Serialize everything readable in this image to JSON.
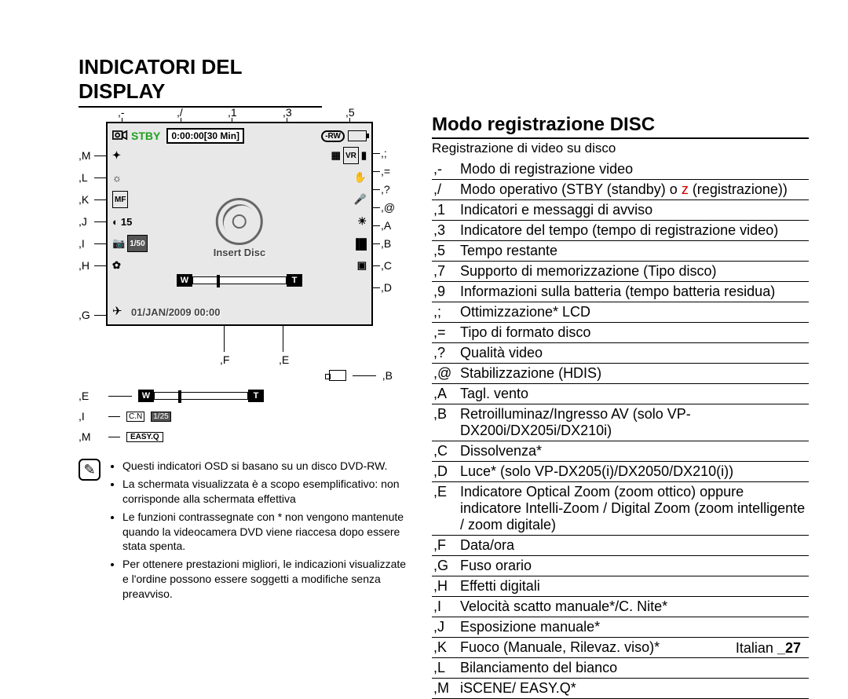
{
  "title": "INDICATORI DEL DISPLAY",
  "subtitle": "Modo registrazione DISC",
  "subdesc": "Registrazione di video su disco",
  "lcd": {
    "mode_stby": "STBY",
    "time_elapsed": "0:00:00",
    "time_remaining": "[30 Min]",
    "disc_type": "-RW",
    "vr_label": "VR",
    "mf_label": "MF",
    "timer_value": "15",
    "shutter_value": "1/50",
    "insert_disc": "Insert Disc",
    "datetime": "01/JAN/2009 00:00",
    "zoom_w": "W",
    "zoom_t": "T"
  },
  "callouts_top": [
    ",-",
    ",/",
    ",1",
    ",3",
    ",5"
  ],
  "callouts_left": [
    ",M",
    ",L",
    ",K",
    ",J",
    ",I",
    ",H",
    ",G"
  ],
  "callouts_right": [
    ",;",
    ",=",
    ",?",
    ",@",
    ",A",
    ",B",
    ",C",
    ",D"
  ],
  "callouts_bottom": [
    ",F",
    ",E"
  ],
  "below": {
    "b_label": ",B",
    "e_label": ",E",
    "i_label": ",I",
    "i_value": "1/25",
    "cn_label": "C.N",
    "m_label": ",M",
    "easyq": "EASY.Q"
  },
  "notes": [
    "Questi indicatori OSD si basano su un disco DVD-RW.",
    "La schermata visualizzata è a scopo esemplificativo: non corrisponde alla schermata effettiva",
    "Le funzioni contrassegnate con * non vengono mantenute quando la videocamera DVD viene riaccesa dopo essere stata spenta.",
    "Per ottenere prestazioni migliori, le indicazioni visualizzate e l'ordine possono essere soggetti a modifiche senza preavviso."
  ],
  "legend": [
    {
      "n": ",-",
      "t": "Modo di registrazione video"
    },
    {
      "n": ",/",
      "t": "Modo operativo (STBY (standby) o ",
      "red": "z",
      "t2": " (registrazione))"
    },
    {
      "n": ",1",
      "t": "Indicatori e messaggi di avviso"
    },
    {
      "n": ",3",
      "t": "Indicatore del tempo (tempo di registrazione video)"
    },
    {
      "n": ",5",
      "t": "Tempo restante"
    },
    {
      "n": ",7",
      "t": "Supporto di memorizzazione (Tipo disco)"
    },
    {
      "n": ",9",
      "t": "Informazioni sulla batteria (tempo batteria residua)"
    },
    {
      "n": ",;",
      "t": "Ottimizzazione* LCD"
    },
    {
      "n": ",=",
      "t": "Tipo di formato disco"
    },
    {
      "n": ",?",
      "t": "Qualità video"
    },
    {
      "n": ",@",
      "t": "Stabilizzazione (HDIS)"
    },
    {
      "n": ",A",
      "t": "Tagl. vento"
    },
    {
      "n": ",B",
      "t": "Retroilluminaz/Ingresso AV (solo VP-DX200i/DX205i/DX210i)"
    },
    {
      "n": ",C",
      "t": "Dissolvenza*"
    },
    {
      "n": ",D",
      "t": "Luce* (solo VP-DX205(i)/DX2050/DX210(i))"
    },
    {
      "n": ",E",
      "t": "Indicatore Optical Zoom (zoom ottico) oppure indicatore Intelli-Zoom / Digital Zoom (zoom intelligente / zoom digitale)"
    },
    {
      "n": ",F",
      "t": "Data/ora"
    },
    {
      "n": ",G",
      "t": "Fuso orario"
    },
    {
      "n": ",H",
      "t": "Effetti digitali"
    },
    {
      "n": ",I",
      "t": "Velocità scatto manuale*/C. Nite*"
    },
    {
      "n": ",J",
      "t": "Esposizione manuale*"
    },
    {
      "n": ",K",
      "t": "Fuoco (Manuale, Rilevaz. viso)*"
    },
    {
      "n": ",L",
      "t": "Bilanciamento del bianco"
    },
    {
      "n": ",M",
      "t": "iSCENE/ EASY.Q*"
    }
  ],
  "footer_lang": "Italian ",
  "footer_page": "_27"
}
